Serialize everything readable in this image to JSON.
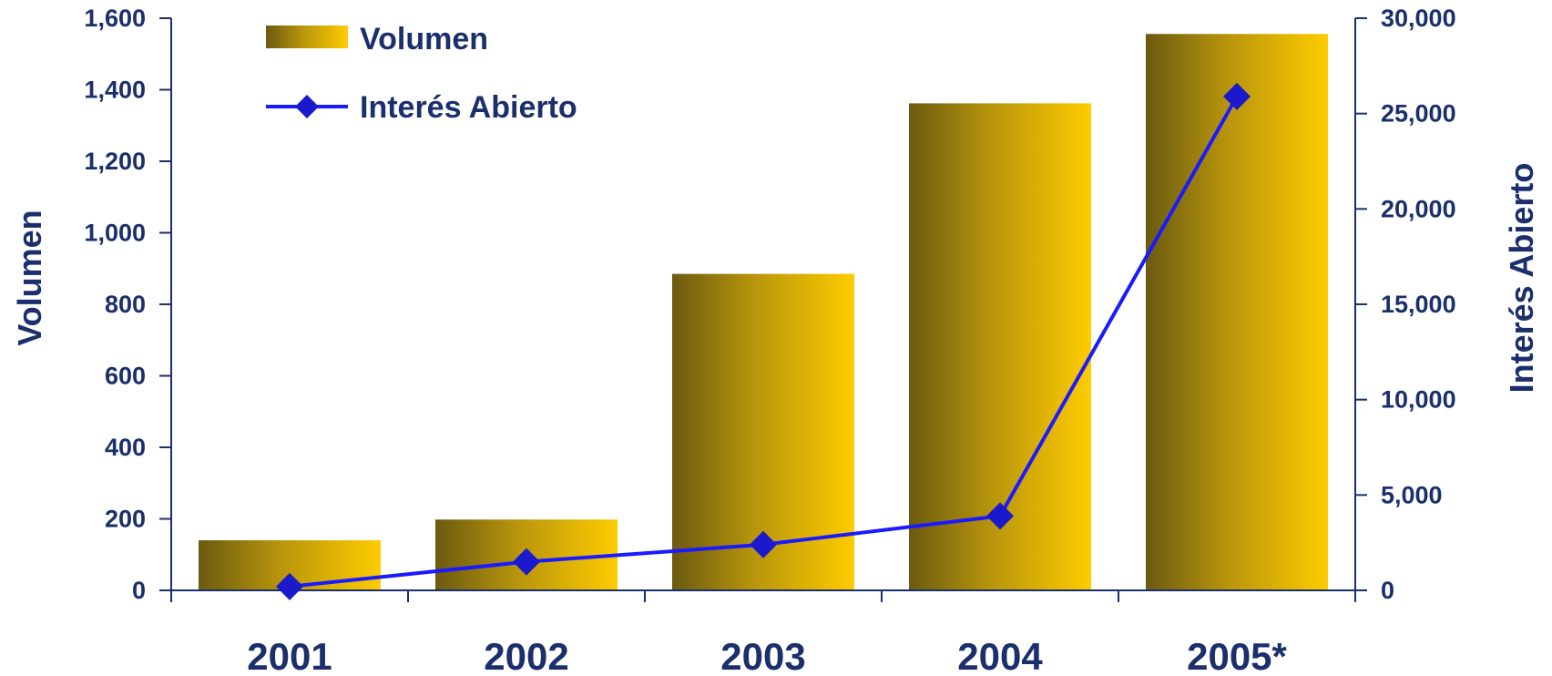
{
  "chart_data": {
    "type": "bar",
    "categories": [
      "2001",
      "2002",
      "2003",
      "2004",
      "2005*"
    ],
    "series": [
      {
        "name": "Volumen",
        "type": "bar",
        "axis": "left",
        "values": [
          140,
          198,
          885,
          1362,
          1556
        ]
      },
      {
        "name": "Interés Abierto",
        "type": "line",
        "axis": "right",
        "marker": "diamond",
        "values": [
          200,
          1500,
          2400,
          3900,
          25900
        ]
      }
    ],
    "ylabel": "Volumen",
    "ylabel_right": "Interés Abierto",
    "ylim": [
      0,
      1600
    ],
    "ylim_right": [
      0,
      30000
    ],
    "yticks": [
      "0",
      "200",
      "400",
      "600",
      "800",
      "1,000",
      "1,200",
      "1,400",
      "1,600"
    ],
    "yticks_right": [
      "0",
      "5,000",
      "10,000",
      "15,000",
      "20,000",
      "25,000",
      "30,000"
    ],
    "legend": "top-left",
    "grid": false,
    "colors": {
      "bar_dark": "#6b5a10",
      "bar_light": "#ffcc00",
      "line": "#1a1aff",
      "marker": "#1a1acc",
      "text": "#1a2f6b",
      "axis": "#1a2f6b"
    }
  }
}
